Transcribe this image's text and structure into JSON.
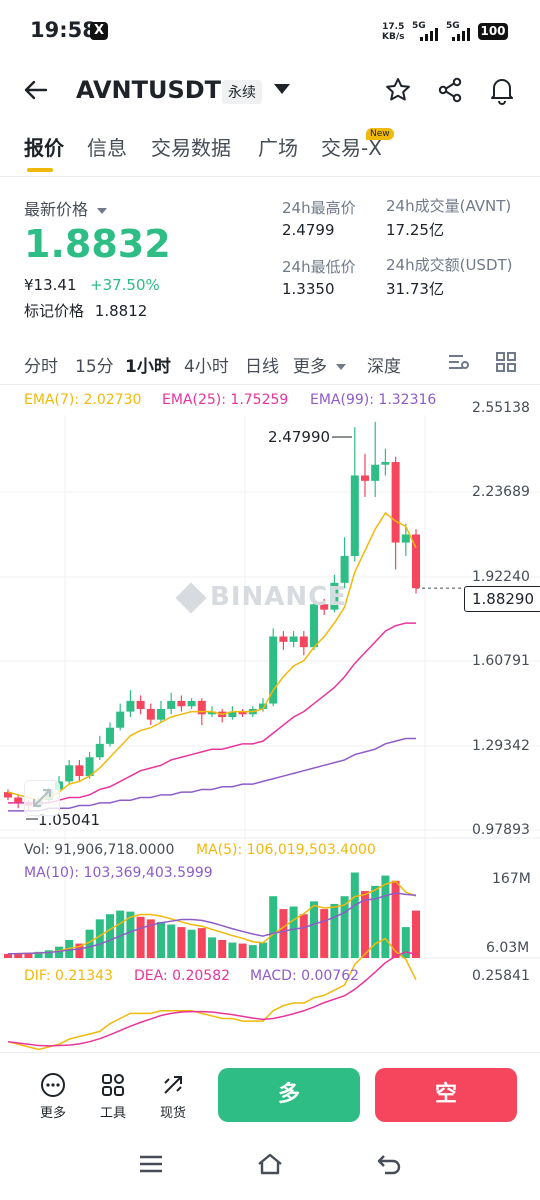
{
  "status": {
    "time": "19:58",
    "x_badge": "X",
    "speed_value": "17.5",
    "speed_unit": "KB/s",
    "sig1": "5G",
    "sig2": "5G",
    "battery": "100"
  },
  "header": {
    "back_icon": "arrow-left-icon",
    "symbol": "AVNTUSDT",
    "contract": "永续"
  },
  "tabs": [
    {
      "label": "报价",
      "active": true
    },
    {
      "label": "信息"
    },
    {
      "label": "交易数据"
    },
    {
      "label": "广场"
    },
    {
      "label": "交易-X",
      "badge": "New"
    }
  ],
  "price": {
    "label": "最新价格",
    "last": "1.8832",
    "cny": "¥13.41",
    "change": "+37.50%",
    "mark_label": "标记价格",
    "mark": "1.8812"
  },
  "stats": {
    "high_label": "24h最高价",
    "high": "2.4799",
    "low_label": "24h最低价",
    "low": "1.3350",
    "vol_label": "24h成交量(AVNT)",
    "vol": "17.25亿",
    "turnover_label": "24h成交额(USDT)",
    "turnover": "31.73亿"
  },
  "intervals": [
    "分时",
    "15分",
    "1小时",
    "4小时",
    "日线",
    "更多",
    "深度"
  ],
  "ema": {
    "ema7": "EMA(7): 2.02730",
    "ema25": "EMA(25): 1.75259",
    "ema99": "EMA(99): 1.32316"
  },
  "colors": {
    "up": "#2ebd85",
    "down": "#f6465d",
    "ema7": "#f0b90b",
    "ema25": "#e8359c",
    "ema99": "#8e5cc8"
  },
  "axis": {
    "price_ticks": [
      "2.55138",
      "2.23689",
      "1.92240",
      "1.60791",
      "1.29342",
      "0.97893"
    ],
    "current": "1.88290",
    "high_marker": "2.47990",
    "low_marker": "1.05041",
    "vol_ticks": [
      "167M",
      "6.03M"
    ],
    "macd_tick": "0.25841"
  },
  "watermark": "BINANCE",
  "volume_legend": {
    "vol": "Vol: 91,906,718.0000",
    "ma5": "MA(5): 106,019,503.4000",
    "ma10": "MA(10): 103,369,403.5999"
  },
  "macd_legend": {
    "dif": "DIF: 0.21343",
    "dea": "DEA: 0.20582",
    "macd": "MACD: 0.00762"
  },
  "chart_data": {
    "type": "candlestick",
    "price_range": [
      0.97893,
      2.55138
    ],
    "volume_range": [
      0,
      167
    ],
    "candles": [
      {
        "o": 1.12,
        "c": 1.1,
        "h": 1.13,
        "l": 1.09,
        "v": 8
      },
      {
        "o": 1.1,
        "c": 1.08,
        "h": 1.11,
        "l": 1.06,
        "v": 9
      },
      {
        "o": 1.08,
        "c": 1.07,
        "h": 1.09,
        "l": 1.05,
        "v": 10
      },
      {
        "o": 1.07,
        "c": 1.09,
        "h": 1.1,
        "l": 1.06,
        "v": 12
      },
      {
        "o": 1.09,
        "c": 1.13,
        "h": 1.14,
        "l": 1.08,
        "v": 15
      },
      {
        "o": 1.13,
        "c": 1.16,
        "h": 1.18,
        "l": 1.12,
        "v": 22
      },
      {
        "o": 1.16,
        "c": 1.22,
        "h": 1.24,
        "l": 1.15,
        "v": 35
      },
      {
        "o": 1.22,
        "c": 1.18,
        "h": 1.24,
        "l": 1.16,
        "v": 28
      },
      {
        "o": 1.18,
        "c": 1.25,
        "h": 1.27,
        "l": 1.17,
        "v": 55
      },
      {
        "o": 1.25,
        "c": 1.3,
        "h": 1.33,
        "l": 1.24,
        "v": 75
      },
      {
        "o": 1.3,
        "c": 1.36,
        "h": 1.38,
        "l": 1.29,
        "v": 85
      },
      {
        "o": 1.36,
        "c": 1.42,
        "h": 1.45,
        "l": 1.35,
        "v": 92
      },
      {
        "o": 1.42,
        "c": 1.46,
        "h": 1.5,
        "l": 1.4,
        "v": 90
      },
      {
        "o": 1.46,
        "c": 1.43,
        "h": 1.48,
        "l": 1.41,
        "v": 80
      },
      {
        "o": 1.43,
        "c": 1.39,
        "h": 1.45,
        "l": 1.37,
        "v": 75
      },
      {
        "o": 1.39,
        "c": 1.43,
        "h": 1.46,
        "l": 1.38,
        "v": 70
      },
      {
        "o": 1.43,
        "c": 1.46,
        "h": 1.49,
        "l": 1.41,
        "v": 65
      },
      {
        "o": 1.46,
        "c": 1.44,
        "h": 1.48,
        "l": 1.42,
        "v": 60
      },
      {
        "o": 1.44,
        "c": 1.46,
        "h": 1.47,
        "l": 1.43,
        "v": 55
      },
      {
        "o": 1.46,
        "c": 1.41,
        "h": 1.47,
        "l": 1.37,
        "v": 58
      },
      {
        "o": 1.41,
        "c": 1.42,
        "h": 1.44,
        "l": 1.4,
        "v": 40
      },
      {
        "o": 1.42,
        "c": 1.4,
        "h": 1.43,
        "l": 1.38,
        "v": 35
      },
      {
        "o": 1.4,
        "c": 1.42,
        "h": 1.44,
        "l": 1.39,
        "v": 30
      },
      {
        "o": 1.42,
        "c": 1.41,
        "h": 1.43,
        "l": 1.4,
        "v": 28
      },
      {
        "o": 1.41,
        "c": 1.43,
        "h": 1.44,
        "l": 1.4,
        "v": 25
      },
      {
        "o": 1.43,
        "c": 1.45,
        "h": 1.47,
        "l": 1.42,
        "v": 30
      },
      {
        "o": 1.45,
        "c": 1.7,
        "h": 1.73,
        "l": 1.44,
        "v": 120
      },
      {
        "o": 1.7,
        "c": 1.68,
        "h": 1.72,
        "l": 1.65,
        "v": 95
      },
      {
        "o": 1.68,
        "c": 1.7,
        "h": 1.72,
        "l": 1.66,
        "v": 100
      },
      {
        "o": 1.7,
        "c": 1.66,
        "h": 1.72,
        "l": 1.63,
        "v": 85
      },
      {
        "o": 1.66,
        "c": 1.82,
        "h": 1.85,
        "l": 1.65,
        "v": 110
      },
      {
        "o": 1.82,
        "c": 1.8,
        "h": 1.84,
        "l": 1.78,
        "v": 95
      },
      {
        "o": 1.8,
        "c": 1.9,
        "h": 1.93,
        "l": 1.79,
        "v": 105
      },
      {
        "o": 1.9,
        "c": 2.0,
        "h": 2.07,
        "l": 1.88,
        "v": 120
      },
      {
        "o": 2.0,
        "c": 2.3,
        "h": 2.48,
        "l": 1.98,
        "v": 166
      },
      {
        "o": 2.3,
        "c": 2.28,
        "h": 2.38,
        "l": 2.22,
        "v": 130
      },
      {
        "o": 2.28,
        "c": 2.34,
        "h": 2.5,
        "l": 2.22,
        "v": 140
      },
      {
        "o": 2.34,
        "c": 2.35,
        "h": 2.4,
        "l": 2.3,
        "v": 160
      },
      {
        "o": 2.35,
        "c": 2.05,
        "h": 2.37,
        "l": 1.95,
        "v": 150
      },
      {
        "o": 2.05,
        "c": 2.08,
        "h": 2.12,
        "l": 2.0,
        "v": 60
      },
      {
        "o": 2.08,
        "c": 1.88,
        "h": 2.1,
        "l": 1.86,
        "v": 92
      }
    ],
    "ema7": [
      1.12,
      1.11,
      1.1,
      1.09,
      1.1,
      1.12,
      1.15,
      1.16,
      1.18,
      1.21,
      1.25,
      1.29,
      1.33,
      1.35,
      1.36,
      1.38,
      1.4,
      1.41,
      1.42,
      1.42,
      1.42,
      1.41,
      1.42,
      1.42,
      1.42,
      1.43,
      1.5,
      1.55,
      1.59,
      1.61,
      1.66,
      1.7,
      1.75,
      1.81,
      1.94,
      2.02,
      2.1,
      2.16,
      2.13,
      2.11,
      2.03
    ],
    "ema25": [
      1.08,
      1.08,
      1.08,
      1.08,
      1.08,
      1.09,
      1.1,
      1.1,
      1.11,
      1.13,
      1.14,
      1.16,
      1.18,
      1.2,
      1.21,
      1.22,
      1.24,
      1.25,
      1.26,
      1.27,
      1.28,
      1.28,
      1.29,
      1.3,
      1.3,
      1.31,
      1.34,
      1.37,
      1.4,
      1.42,
      1.45,
      1.48,
      1.51,
      1.55,
      1.6,
      1.64,
      1.68,
      1.72,
      1.74,
      1.75,
      1.75
    ],
    "ema99": [
      1.05,
      1.05,
      1.05,
      1.05,
      1.06,
      1.06,
      1.06,
      1.07,
      1.07,
      1.08,
      1.08,
      1.09,
      1.09,
      1.1,
      1.1,
      1.11,
      1.11,
      1.12,
      1.12,
      1.13,
      1.13,
      1.14,
      1.14,
      1.15,
      1.15,
      1.16,
      1.17,
      1.18,
      1.19,
      1.2,
      1.21,
      1.22,
      1.23,
      1.24,
      1.26,
      1.27,
      1.28,
      1.3,
      1.31,
      1.32,
      1.32
    ]
  },
  "bottom": {
    "more": "更多",
    "tools": "工具",
    "spot": "现货",
    "long": "多",
    "short": "空"
  }
}
